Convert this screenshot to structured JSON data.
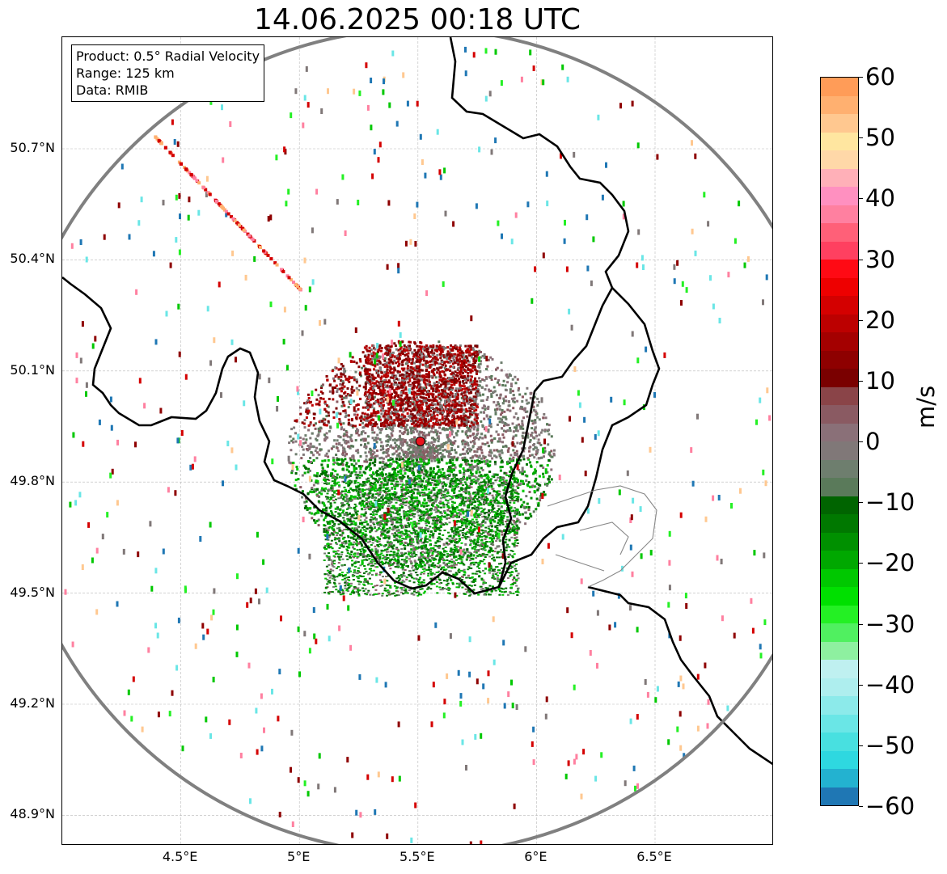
{
  "title": "14.06.2025 00:18 UTC",
  "info_box": {
    "product": "Product: 0.5° Radial Velocity",
    "range": "Range: 125 km",
    "data": "Data: RMIB"
  },
  "map": {
    "lon_range": [
      4.0,
      7.0
    ],
    "lat_range": [
      48.8,
      51.0
    ],
    "radar_site": {
      "lon": 5.51,
      "lat": 49.91,
      "color": "#e8141e"
    },
    "range_km": 125,
    "lat_ticks": [
      "50.7°N",
      "50.4°N",
      "50.1°N",
      "49.8°N",
      "49.5°N",
      "49.2°N",
      "48.9°N"
    ],
    "lon_ticks": [
      "4.5°E",
      "5°E",
      "5.5°E",
      "6°E",
      "6.5°E"
    ],
    "gridlines": true,
    "border_color": "#000000",
    "admin_border_color": "#888888",
    "range_ring_color": "#808080"
  },
  "colorbar": {
    "unit": "m/s",
    "min": -60,
    "max": 60,
    "ticks": [
      "60",
      "50",
      "40",
      "30",
      "20",
      "10",
      "0",
      "−10",
      "−20",
      "−30",
      "−40",
      "−50",
      "−60"
    ],
    "colors_bottom_to_top": [
      "#1f77b4",
      "#23b2d0",
      "#2ed8e0",
      "#48e0e0",
      "#6ae6e6",
      "#8ceaea",
      "#aeeeee",
      "#bff0f0",
      "#8ef0a0",
      "#50f060",
      "#24f024",
      "#00e000",
      "#00c800",
      "#00a800",
      "#009000",
      "#007800",
      "#006400",
      "#5a7a5a",
      "#6e7e6e",
      "#807878",
      "#8a7078",
      "#8a5a62",
      "#8a4448",
      "#7a0000",
      "#8e0000",
      "#a40000",
      "#bc0000",
      "#d40000",
      "#ee0000",
      "#ff0a14",
      "#ff4060",
      "#ff6078",
      "#ff80a0",
      "#ff90c0",
      "#ffb0b8",
      "#ffd8a8",
      "#ffe6a0",
      "#ffc890",
      "#ffb070",
      "#ff9c58"
    ]
  }
}
